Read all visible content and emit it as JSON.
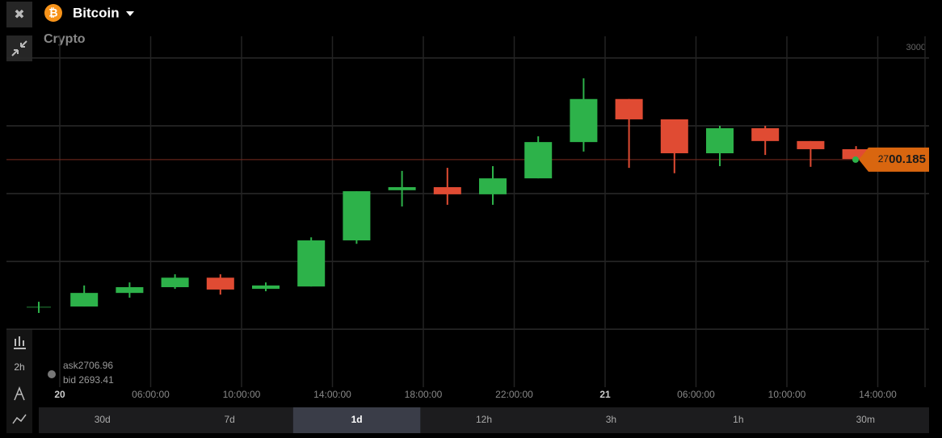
{
  "header": {
    "asset": "Bitcoin",
    "category": "Crypto"
  },
  "quote": {
    "ask_label": "ask",
    "ask": 2706.96,
    "bid_label": "bid",
    "bid": 2693.41
  },
  "toolbar": {
    "interval": "2h"
  },
  "periods": [
    "30d",
    "7d",
    "1d",
    "12h",
    "3h",
    "1h",
    "30m"
  ],
  "selected_period": 2,
  "chart_data": {
    "type": "candlestick",
    "x_labels": [
      "20",
      "06:00:00",
      "10:00:00",
      "14:00:00",
      "18:00:00",
      "22:00:00",
      "21",
      "06:00:00",
      "10:00:00",
      "14:00:00"
    ],
    "open": [
      2267,
      2267,
      2307,
      2324,
      2352,
      2319,
      2326,
      2462,
      2610,
      2619,
      2598,
      2645,
      2752,
      2879,
      2819,
      2719,
      2793,
      2755,
      2731
    ],
    "high": [
      2281,
      2329,
      2338,
      2362,
      2362,
      2338,
      2471,
      2607,
      2667,
      2676,
      2681,
      2769,
      2940,
      2879,
      2819,
      2800,
      2800,
      2755,
      2740
    ],
    "low": [
      2248,
      2267,
      2293,
      2319,
      2302,
      2312,
      2326,
      2452,
      2562,
      2567,
      2567,
      2645,
      2724,
      2676,
      2660,
      2681,
      2714,
      2679,
      2700
    ],
    "close": [
      2267,
      2307,
      2324,
      2352,
      2317,
      2329,
      2462,
      2607,
      2619,
      2598,
      2645,
      2752,
      2879,
      2819,
      2719,
      2793,
      2755,
      2731,
      2702
    ],
    "up_color": "#2db24a",
    "down_color": "#e04b33",
    "ylim": [
      2029,
      3064
    ],
    "yticks": [
      3000
    ],
    "ygrid": [
      3000,
      2800,
      2600,
      2400,
      2200
    ],
    "current_price": 2700.185,
    "price_prefix": "27",
    "price_main": "00.185",
    "price_color": "#d9660f"
  }
}
